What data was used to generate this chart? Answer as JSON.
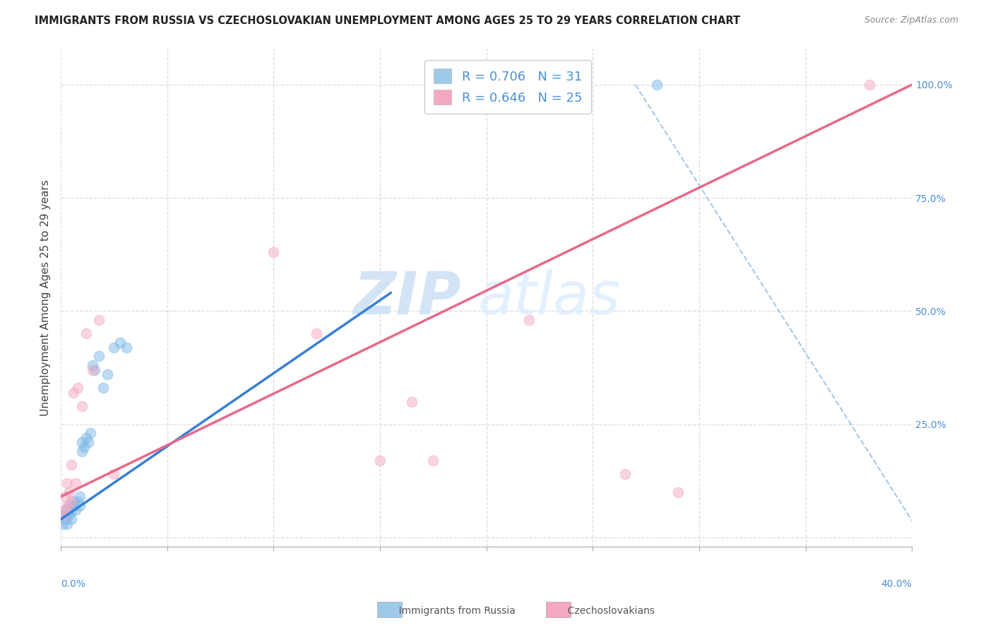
{
  "title": "IMMIGRANTS FROM RUSSIA VS CZECHOSLOVAKIAN UNEMPLOYMENT AMONG AGES 25 TO 29 YEARS CORRELATION CHART",
  "source": "Source: ZipAtlas.com",
  "ylabel": "Unemployment Among Ages 25 to 29 years",
  "y_ticks": [
    0.0,
    0.25,
    0.5,
    0.75,
    1.0
  ],
  "y_tick_labels": [
    "",
    "25.0%",
    "50.0%",
    "75.0%",
    "100.0%"
  ],
  "x_ticks": [
    0.0,
    0.05,
    0.1,
    0.15,
    0.2,
    0.25,
    0.3,
    0.35,
    0.4
  ],
  "xlim": [
    0,
    0.4
  ],
  "ylim": [
    -0.02,
    1.08
  ],
  "russia_R": 0.706,
  "russia_N": 31,
  "czech_R": 0.646,
  "czech_N": 25,
  "russia_color": "#7db8e8",
  "czech_color": "#f4a8c0",
  "russia_line_color": "#3a7fd5",
  "czech_line_color": "#e8698a",
  "ref_line_color": "#a8c8e8",
  "watermark_color": "#ddeeff",
  "background_color": "#ffffff",
  "legend_color_russia": "#9ecae8",
  "legend_color_czech": "#f4a8c0",
  "russia_scatter_x": [
    0.001,
    0.001,
    0.002,
    0.002,
    0.003,
    0.003,
    0.004,
    0.004,
    0.005,
    0.005,
    0.006,
    0.006,
    0.007,
    0.008,
    0.009,
    0.009,
    0.01,
    0.01,
    0.011,
    0.012,
    0.013,
    0.014,
    0.015,
    0.016,
    0.018,
    0.02,
    0.022,
    0.025,
    0.028,
    0.031,
    0.28
  ],
  "russia_scatter_y": [
    0.03,
    0.05,
    0.04,
    0.06,
    0.03,
    0.05,
    0.05,
    0.07,
    0.04,
    0.06,
    0.07,
    0.08,
    0.06,
    0.08,
    0.07,
    0.09,
    0.19,
    0.21,
    0.2,
    0.22,
    0.21,
    0.23,
    0.38,
    0.37,
    0.4,
    0.33,
    0.36,
    0.42,
    0.43,
    0.42,
    1.0
  ],
  "czech_scatter_x": [
    0.001,
    0.002,
    0.002,
    0.003,
    0.003,
    0.004,
    0.005,
    0.005,
    0.006,
    0.007,
    0.008,
    0.01,
    0.012,
    0.015,
    0.018,
    0.025,
    0.1,
    0.12,
    0.15,
    0.175,
    0.22,
    0.29,
    0.38,
    0.165,
    0.265
  ],
  "czech_scatter_y": [
    0.05,
    0.06,
    0.09,
    0.07,
    0.12,
    0.1,
    0.08,
    0.16,
    0.32,
    0.12,
    0.33,
    0.29,
    0.45,
    0.37,
    0.48,
    0.14,
    0.63,
    0.45,
    0.17,
    0.17,
    0.48,
    0.1,
    1.0,
    0.3,
    0.14
  ],
  "russia_line_x0": 0.0,
  "russia_line_y0": 0.04,
  "russia_line_x1": 0.155,
  "russia_line_y1": 0.54,
  "czech_line_x0": 0.0,
  "czech_line_y0": 0.09,
  "czech_line_x1": 0.4,
  "czech_line_y1": 1.0,
  "ref_line_x0": 0.27,
  "ref_line_y0": 1.0,
  "ref_line_x1": 0.405,
  "ref_line_y1": 0.0,
  "marker_size": 110,
  "marker_alpha": 0.5,
  "title_fontsize": 10.5,
  "source_fontsize": 9,
  "tick_fontsize": 10,
  "legend_fontsize": 13,
  "ylabel_fontsize": 11
}
